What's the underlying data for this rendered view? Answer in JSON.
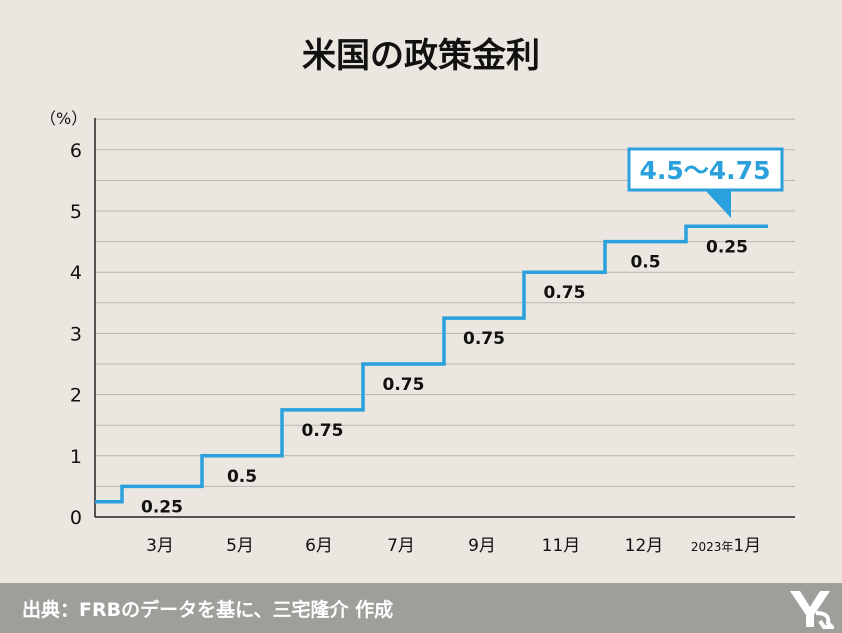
{
  "chart_data": {
    "type": "line",
    "title": "米国の政策金利",
    "ylabel": "（%）",
    "ylim": [
      0,
      6.5
    ],
    "yticks": [
      "0",
      "1",
      "2",
      "3",
      "4",
      "5",
      "6"
    ],
    "step": true,
    "categories": [
      "3月",
      "5月",
      "6月",
      "7月",
      "9月",
      "11月",
      "12月",
      "2023年1月"
    ],
    "upper_rate": [
      0.25,
      0.5,
      1.0,
      1.75,
      2.5,
      3.25,
      4.0,
      4.5,
      4.75
    ],
    "increments": [
      "0.25",
      "0.5",
      "0.75",
      "0.75",
      "0.75",
      "0.75",
      "0.5",
      "0.25"
    ],
    "callout": "4.5〜4.75",
    "line_color": "#2aa0dc"
  },
  "footer": {
    "source": "出典：FRBのデータを基に、三宅隆介 作成"
  }
}
